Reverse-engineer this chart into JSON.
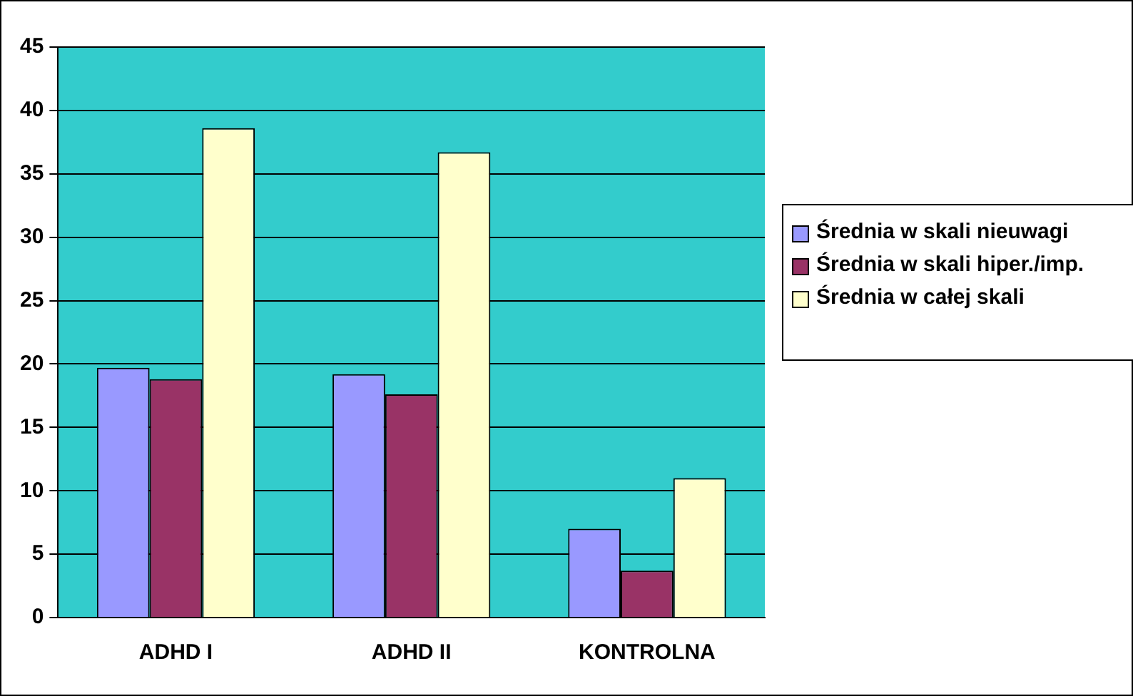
{
  "chart_data": {
    "type": "bar",
    "categories": [
      "ADHD I",
      "ADHD II",
      "KONTROLNA"
    ],
    "series": [
      {
        "name": "Średnia w skali nieuwagi",
        "color": "#9999ff",
        "values": [
          19.7,
          19.2,
          7.0
        ]
      },
      {
        "name": "Średnia w skali hiper./imp.",
        "color": "#993366",
        "values": [
          18.8,
          17.6,
          3.7
        ]
      },
      {
        "name": "Średnia w całej skali",
        "color": "#ffffcc",
        "values": [
          38.6,
          36.7,
          11.0
        ]
      }
    ],
    "ylim": [
      0,
      45
    ],
    "yticks": [
      0,
      5,
      10,
      15,
      20,
      25,
      30,
      35,
      40,
      45
    ],
    "grid": "y",
    "legend": "right"
  }
}
